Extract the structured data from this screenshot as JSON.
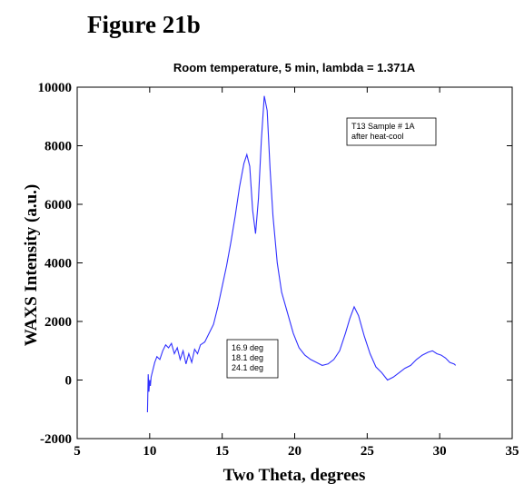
{
  "figure_label": "Figure 21b",
  "chart_data": {
    "type": "line",
    "title": "Room temperature, 5 min, lambda = 1.371A",
    "xlabel": "Two Theta, degrees",
    "ylabel": "WAXS Intensity (a.u.)",
    "xlim": [
      5,
      35
    ],
    "ylim": [
      -2000,
      10000
    ],
    "xticks": [
      5,
      10,
      15,
      20,
      25,
      30,
      35
    ],
    "yticks": [
      -2000,
      0,
      2000,
      4000,
      6000,
      8000,
      10000
    ],
    "grid": false,
    "color": "#3030ff",
    "series": [
      {
        "x": [
          9.85,
          9.9,
          9.95,
          10.0,
          10.05,
          10.1,
          10.2,
          10.35,
          10.5,
          10.7,
          10.9,
          11.1,
          11.3,
          11.5,
          11.7,
          11.9,
          12.1,
          12.3,
          12.5,
          12.7,
          12.9,
          13.1,
          13.3,
          13.5,
          13.8,
          14.1,
          14.4,
          14.7,
          15.0,
          15.3,
          15.6,
          15.9,
          16.2,
          16.5,
          16.7,
          16.9,
          17.1,
          17.3,
          17.5,
          17.7,
          17.9,
          18.1,
          18.3,
          18.5,
          18.8,
          19.1,
          19.5,
          19.9,
          20.3,
          20.7,
          21.1,
          21.5,
          21.9,
          22.3,
          22.7,
          23.1,
          23.5,
          23.8,
          24.1,
          24.4,
          24.8,
          25.2,
          25.6,
          26.0,
          26.4,
          26.8,
          27.2,
          27.6,
          28.0,
          28.4,
          28.8,
          29.2,
          29.5,
          29.8,
          30.1,
          30.4,
          30.7,
          31.0,
          31.1
        ],
        "y": [
          -1100,
          200,
          -400,
          0,
          -200,
          100,
          300,
          600,
          800,
          700,
          1000,
          1200,
          1100,
          1250,
          900,
          1100,
          700,
          1000,
          550,
          900,
          600,
          1050,
          900,
          1200,
          1300,
          1600,
          1900,
          2500,
          3200,
          3900,
          4700,
          5600,
          6600,
          7400,
          7700,
          7300,
          5800,
          5000,
          6200,
          8200,
          9700,
          9200,
          7200,
          5600,
          4000,
          3000,
          2300,
          1600,
          1100,
          850,
          700,
          600,
          500,
          550,
          700,
          1000,
          1600,
          2100,
          2500,
          2200,
          1500,
          900,
          450,
          250,
          0,
          100,
          250,
          400,
          500,
          700,
          850,
          950,
          1000,
          900,
          850,
          750,
          600,
          550,
          500
        ]
      }
    ],
    "annotations": [
      {
        "lines": [
          "T13 Sample # 1A",
          "after heat-cool"
        ]
      },
      {
        "lines": [
          "16.9 deg",
          "18.1 deg",
          "24.1 deg"
        ]
      }
    ]
  }
}
